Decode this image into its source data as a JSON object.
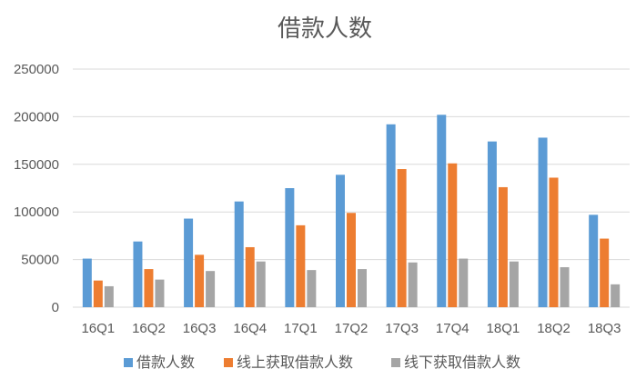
{
  "chart_data": {
    "type": "bar",
    "title": "借款人数",
    "xlabel": "",
    "ylabel": "",
    "categories": [
      "16Q1",
      "16Q2",
      "16Q3",
      "16Q4",
      "17Q1",
      "17Q2",
      "17Q3",
      "17Q4",
      "18Q1",
      "18Q2",
      "18Q3"
    ],
    "ylim": [
      0,
      250000
    ],
    "yticks": [
      0,
      50000,
      100000,
      150000,
      200000,
      250000
    ],
    "ytick_labels": [
      "0",
      "50000",
      "100000",
      "150000",
      "200000",
      "250000"
    ],
    "grid": true,
    "legend_position": "bottom",
    "series": [
      {
        "name": "借款人数",
        "color": "#5b9bd5",
        "values": [
          51000,
          69000,
          93000,
          111000,
          125000,
          139000,
          192000,
          202000,
          174000,
          178000,
          97000
        ]
      },
      {
        "name": "线上获取借款人数",
        "color": "#ed7d31",
        "values": [
          28000,
          40000,
          55000,
          63000,
          86000,
          99000,
          145000,
          151000,
          126000,
          136000,
          72000
        ]
      },
      {
        "name": "线下获取借款人数",
        "color": "#a5a5a5",
        "values": [
          22000,
          29000,
          38000,
          48000,
          39000,
          40000,
          47000,
          51000,
          48000,
          42000,
          24000
        ]
      }
    ]
  }
}
